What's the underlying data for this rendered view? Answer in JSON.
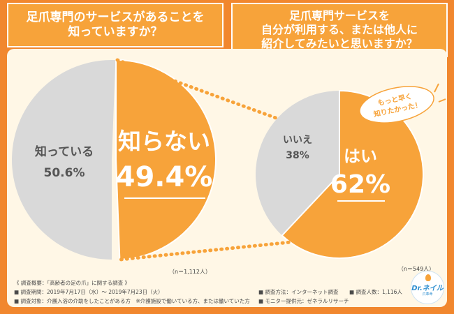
{
  "colors": {
    "background": "#f1872e",
    "panel": "#fff7e6",
    "highlight": "#f7a33a",
    "neutral": "#d9d9d9",
    "accent_text": "#ffffff",
    "label_text": "#555555"
  },
  "questions": {
    "left": "足爪専門のサービスがあることを\n知っていますか？",
    "right": "足爪専門サービスを\n自分が利用する、または他人に\n紹介してみたいと思いますか？"
  },
  "chart_data": [
    {
      "type": "pie",
      "title": "足爪専門のサービスがあることを知っていますか？",
      "slices": [
        {
          "label": "知らない",
          "value": 49.4,
          "display": "49.4%",
          "highlight": true
        },
        {
          "label": "知っている",
          "value": 50.6,
          "display": "50.6%",
          "highlight": false
        }
      ],
      "sample": "（n＝1,112人）"
    },
    {
      "type": "pie",
      "title": "足爪専門サービスを自分が利用する、または他人に紹介してみたいと思いますか？",
      "slices": [
        {
          "label": "はい",
          "value": 62,
          "display": "62%",
          "highlight": true
        },
        {
          "label": "いいえ",
          "value": 38,
          "display": "38%",
          "highlight": false
        }
      ],
      "sample": "（n＝549人）",
      "annotation": [
        "もっと早く",
        "知りたかった！"
      ]
    }
  ],
  "footer": {
    "title": "《 調査概要：「高齢者の足の爪」に関する調査 》",
    "period": "■ 調査期間：2019年7月17日（水）～ 2019年7月23日（火）",
    "target": "■ 調査対象：介護入浴の介助をしたことがある方　※介護施設で働いている方、または働いていた方",
    "method": "■ 調査方法：インターネット調査",
    "count": "■ 調査人数：1,116人",
    "provider": "■ モニター提供元：ゼネラルリサーチ"
  },
  "logo": {
    "name": "Dr.ネイル",
    "sub": "爪革命",
    "icon": "person-figure-icon"
  }
}
